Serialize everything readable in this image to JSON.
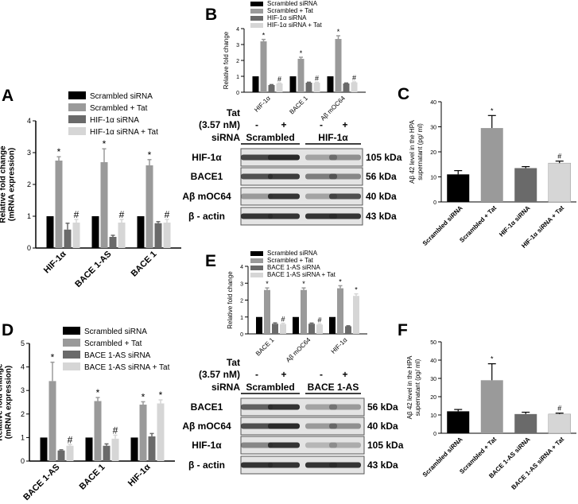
{
  "panels": {
    "A": "A",
    "B": "B",
    "C": "C",
    "D": "D",
    "E": "E",
    "F": "F"
  },
  "colors": {
    "black": "#000000",
    "mid_gray": "#9a9a9a",
    "dark_gray": "#6a6a6a",
    "light_gray": "#d6d6d6",
    "blot_band": "#2a2a2a"
  },
  "legend_hif": [
    "Scrambled siRNA",
    "Scrambled + Tat",
    "HIF-1α siRNA",
    "HIF-1α siRNA + Tat"
  ],
  "legend_bace": [
    "Scrambled siRNA",
    "Scrambled + Tat",
    "BACE 1-AS siRNA",
    "BACE 1-AS siRNA + Tat"
  ],
  "blot_B": {
    "tat_label": "Tat",
    "dose_label": "(3.57 nM)",
    "sirna_label": "siRNA",
    "treat": [
      "-",
      "+",
      "-",
      "+"
    ],
    "groups": [
      "Scrambled",
      "HIF-1α"
    ],
    "rows": [
      {
        "name": "HIF-1α",
        "kda": "105 kDa"
      },
      {
        "name": "BACE1",
        "kda": "56 kDa"
      },
      {
        "name": "Aβ mOC64",
        "kda": "40 kDa"
      },
      {
        "name": "β - actin",
        "kda": "43 kDa"
      }
    ]
  },
  "blot_E": {
    "tat_label": "Tat",
    "dose_label": "(3.57 nM)",
    "sirna_label": "siRNA",
    "treat": [
      "-",
      "+",
      "-",
      "+"
    ],
    "groups": [
      "Scrambled",
      "BACE 1-AS"
    ],
    "rows": [
      {
        "name": "BACE1",
        "kda": "56 kDa"
      },
      {
        "name": "Aβ mOC64",
        "kda": "40 kDa"
      },
      {
        "name": "HIF-1α",
        "kda": "105 kDa"
      },
      {
        "name": "β - actin",
        "kda": "43 kDa"
      }
    ]
  },
  "chart_data": [
    {
      "panel": "A",
      "type": "bar",
      "ylabel": "Relative fold change\n(mRNA expression)",
      "ylim": [
        0,
        4
      ],
      "yticks": [
        0,
        1,
        2,
        3,
        4
      ],
      "categories": [
        "HIF-1α",
        "BACE 1-AS",
        "BACE 1"
      ],
      "series": [
        {
          "name": "Scrambled siRNA",
          "values": [
            1.0,
            1.0,
            1.0
          ],
          "errors": [
            0,
            0,
            0
          ]
        },
        {
          "name": "Scrambled + Tat",
          "values": [
            2.75,
            2.7,
            2.6
          ],
          "errors": [
            0.12,
            0.42,
            0.18
          ]
        },
        {
          "name": "HIF-1α siRNA",
          "values": [
            0.58,
            0.35,
            0.78
          ],
          "errors": [
            0.2,
            0.05,
            0.05
          ]
        },
        {
          "name": "HIF-1α siRNA + Tat",
          "values": [
            0.8,
            0.8,
            0.8
          ],
          "errors": [
            0.1,
            0.1,
            0.1
          ]
        }
      ],
      "annotations": [
        [
          "",
          "*",
          "",
          "#"
        ],
        [
          "",
          "*",
          "",
          "#"
        ],
        [
          "",
          "*",
          "",
          "#"
        ]
      ]
    },
    {
      "panel": "B",
      "type": "bar",
      "ylabel": "Relative fold change",
      "ylim": [
        0,
        4
      ],
      "yticks": [
        0,
        1,
        2,
        3,
        4
      ],
      "categories": [
        "HIF-1α",
        "BACE 1",
        "Aβ mOC64"
      ],
      "series": [
        {
          "name": "Scrambled siRNA",
          "values": [
            1.0,
            1.0,
            1.0
          ],
          "errors": [
            0,
            0,
            0
          ]
        },
        {
          "name": "Scrambled + Tat",
          "values": [
            3.2,
            2.1,
            3.35
          ],
          "errors": [
            0.12,
            0.1,
            0.2
          ]
        },
        {
          "name": "HIF-1α siRNA",
          "values": [
            0.45,
            0.6,
            0.55
          ],
          "errors": [
            0.03,
            0.03,
            0.03
          ]
        },
        {
          "name": "HIF-1α siRNA + Tat",
          "values": [
            0.55,
            0.6,
            0.62
          ],
          "errors": [
            0.03,
            0.03,
            0.03
          ]
        }
      ],
      "annotations": [
        [
          "",
          "*",
          "",
          "#"
        ],
        [
          "",
          "*",
          "",
          "#"
        ],
        [
          "",
          "*",
          "",
          "#"
        ]
      ]
    },
    {
      "panel": "C",
      "type": "bar",
      "ylabel": "Aβ 42 level in the HPA\nsupernatant (pg/ ml)",
      "ylim": [
        0,
        40
      ],
      "yticks": [
        0,
        10,
        20,
        30,
        40
      ],
      "categories": [
        "Scrambled siRNA",
        "Scrambled + Tat",
        "HIF-1α siRNA",
        "HIF-1α siRNA + Tat"
      ],
      "values": [
        11,
        29.5,
        13.5,
        15.5
      ],
      "errors": [
        1.5,
        5,
        0.6,
        0.8
      ],
      "annotations": [
        "",
        "*",
        "",
        "#"
      ]
    },
    {
      "panel": "D",
      "type": "bar",
      "ylabel": "Relative fold change\n(mRNA expression)",
      "ylim": [
        0,
        5
      ],
      "yticks": [
        0,
        1,
        2,
        3,
        4,
        5
      ],
      "categories": [
        "BACE 1-AS",
        "BACE 1",
        "HIF-1α"
      ],
      "series": [
        {
          "name": "Scrambled siRNA",
          "values": [
            1.0,
            1.0,
            1.0
          ],
          "errors": [
            0,
            0,
            0
          ]
        },
        {
          "name": "Scrambled + Tat",
          "values": [
            3.4,
            2.55,
            2.4
          ],
          "errors": [
            0.8,
            0.15,
            0.12
          ]
        },
        {
          "name": "BACE 1-AS siRNA",
          "values": [
            0.45,
            0.65,
            1.05
          ],
          "errors": [
            0.03,
            0.08,
            0.12
          ]
        },
        {
          "name": "BACE 1-AS siRNA + Tat",
          "values": [
            0.65,
            0.95,
            2.45
          ],
          "errors": [
            0.05,
            0.15,
            0.15
          ]
        }
      ],
      "annotations": [
        [
          "",
          "*",
          "",
          "#"
        ],
        [
          "",
          "*",
          "",
          "#"
        ],
        [
          "",
          "*",
          "",
          "*"
        ]
      ]
    },
    {
      "panel": "E",
      "type": "bar",
      "ylabel": "Relative fold change",
      "ylim": [
        0,
        4
      ],
      "yticks": [
        0,
        1,
        2,
        3,
        4
      ],
      "categories": [
        "BACE 1",
        "Aβ mOC64",
        "HIF-1α"
      ],
      "series": [
        {
          "name": "Scrambled siRNA",
          "values": [
            1.0,
            1.0,
            1.0
          ],
          "errors": [
            0,
            0,
            0
          ]
        },
        {
          "name": "Scrambled + Tat",
          "values": [
            2.6,
            2.6,
            2.7
          ],
          "errors": [
            0.12,
            0.12,
            0.15
          ]
        },
        {
          "name": "BACE 1-AS siRNA",
          "values": [
            0.6,
            0.6,
            0.45
          ],
          "errors": [
            0.05,
            0.04,
            0.03
          ]
        },
        {
          "name": "BACE 1-AS siRNA + Tat",
          "values": [
            0.58,
            0.55,
            2.25
          ],
          "errors": [
            0.05,
            0.04,
            0.12
          ]
        }
      ],
      "annotations": [
        [
          "",
          "*",
          "",
          "#"
        ],
        [
          "",
          "*",
          "",
          "#"
        ],
        [
          "",
          "*",
          "",
          "*"
        ]
      ]
    },
    {
      "panel": "F",
      "type": "bar",
      "ylabel": "Aβ 42 level in the HPA\nsupernatant (pg/ ml)",
      "ylim": [
        0,
        50
      ],
      "yticks": [
        0,
        10,
        20,
        30,
        40,
        50
      ],
      "categories": [
        "Scrambled siRNA",
        "Scrambled + Tat",
        "BACE 1-AS siRNA",
        "BACE 1-AS siRNA + Tat"
      ],
      "values": [
        12,
        29,
        10.5,
        10.5
      ],
      "errors": [
        1,
        9,
        1,
        0.5
      ],
      "annotations": [
        "",
        "*",
        "",
        "#"
      ]
    }
  ]
}
